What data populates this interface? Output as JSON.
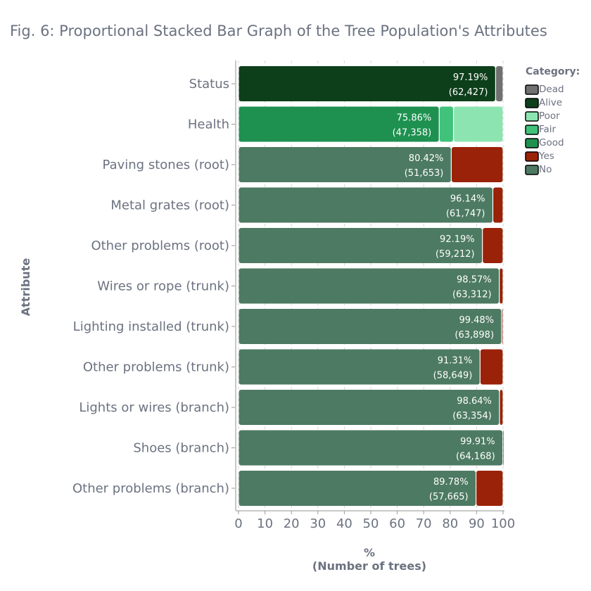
{
  "chart_data": {
    "type": "bar",
    "orientation": "horizontal",
    "stacked": true,
    "title": "Fig. 6: Proportional Stacked Bar Graph of the Tree Population's Attributes",
    "xlabel": "%",
    "xlabel_sub": "(Number of trees)",
    "ylabel": "Attribute",
    "xlim": [
      0,
      100
    ],
    "xticks": [
      0,
      10,
      20,
      30,
      40,
      50,
      60,
      70,
      80,
      90,
      100
    ],
    "grid": "vertical dashed",
    "legend": {
      "title": "Category:",
      "placement": "top-right",
      "entries": [
        {
          "name": "Dead",
          "color": "#707070"
        },
        {
          "name": "Alive",
          "color": "#0e3f1b"
        },
        {
          "name": "Poor",
          "color": "#8ce5b0"
        },
        {
          "name": "Fair",
          "color": "#40c27a"
        },
        {
          "name": "Good",
          "color": "#1e9150"
        },
        {
          "name": "Yes",
          "color": "#9a2208"
        },
        {
          "name": "No",
          "color": "#4d7a62"
        }
      ]
    },
    "categories": [
      "Status",
      "Health",
      "Paving stones (root)",
      "Metal grates (root)",
      "Other problems (root)",
      "Wires or rope (trunk)",
      "Lighting installed (trunk)",
      "Other problems (trunk)",
      "Lights or wires (branch)",
      "Shoes (branch)",
      "Other problems (branch)"
    ],
    "bars": [
      {
        "segments": [
          {
            "name": "Alive",
            "value": 97.19
          },
          {
            "name": "Dead",
            "value": 2.81
          }
        ],
        "label_pct": "97.19%",
        "label_count": "(62,427)"
      },
      {
        "segments": [
          {
            "name": "Good",
            "value": 75.86
          },
          {
            "name": "Fair",
            "value": 5.4
          },
          {
            "name": "Poor",
            "value": 18.74
          }
        ],
        "label_pct": "75.86%",
        "label_count": "(47,358)"
      },
      {
        "segments": [
          {
            "name": "No",
            "value": 80.42
          },
          {
            "name": "Yes",
            "value": 19.58
          }
        ],
        "label_pct": "80.42%",
        "label_count": "(51,653)"
      },
      {
        "segments": [
          {
            "name": "No",
            "value": 96.14
          },
          {
            "name": "Yes",
            "value": 3.86
          }
        ],
        "label_pct": "96.14%",
        "label_count": "(61,747)"
      },
      {
        "segments": [
          {
            "name": "No",
            "value": 92.19
          },
          {
            "name": "Yes",
            "value": 7.81
          }
        ],
        "label_pct": "92.19%",
        "label_count": "(59,212)"
      },
      {
        "segments": [
          {
            "name": "No",
            "value": 98.57
          },
          {
            "name": "Yes",
            "value": 1.43
          }
        ],
        "label_pct": "98.57%",
        "label_count": "(63,312)"
      },
      {
        "segments": [
          {
            "name": "No",
            "value": 99.48
          },
          {
            "name": "Yes",
            "value": 0.52
          }
        ],
        "label_pct": "99.48%",
        "label_count": "(63,898)"
      },
      {
        "segments": [
          {
            "name": "No",
            "value": 91.31
          },
          {
            "name": "Yes",
            "value": 8.69
          }
        ],
        "label_pct": "91.31%",
        "label_count": "(58,649)"
      },
      {
        "segments": [
          {
            "name": "No",
            "value": 98.64
          },
          {
            "name": "Yes",
            "value": 1.36
          }
        ],
        "label_pct": "98.64%",
        "label_count": "(63,354)"
      },
      {
        "segments": [
          {
            "name": "No",
            "value": 99.91
          },
          {
            "name": "Yes",
            "value": 0.09
          }
        ],
        "label_pct": "99.91%",
        "label_count": "(64,168)"
      },
      {
        "segments": [
          {
            "name": "No",
            "value": 89.78
          },
          {
            "name": "Yes",
            "value": 10.22
          }
        ],
        "label_pct": "89.78%",
        "label_count": "(57,665)"
      }
    ]
  }
}
